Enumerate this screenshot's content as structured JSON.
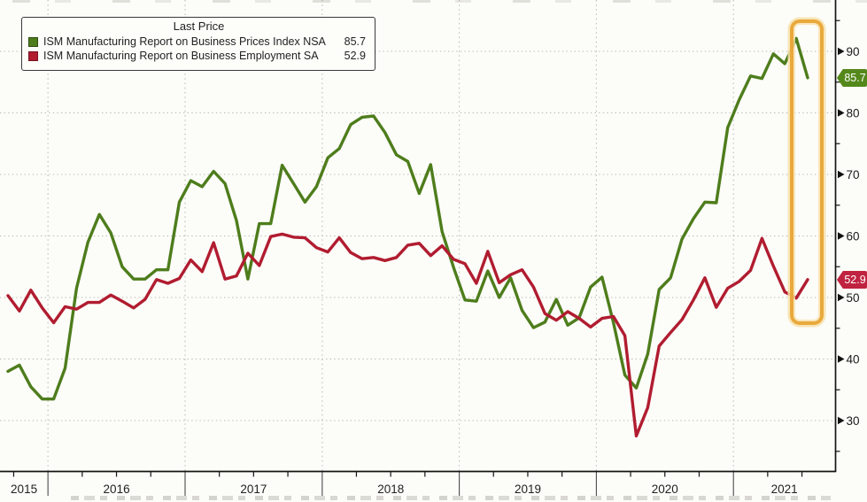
{
  "legend": {
    "title": "Last Price",
    "series": [
      {
        "label": "ISM Manufacturing Report on Business Prices Index NSA",
        "value": "85.7"
      },
      {
        "label": "ISM Manufacturing Report on Business Employment SA",
        "value": "52.9"
      }
    ]
  },
  "tags": [
    {
      "value": "85.7",
      "bg": "#54881b"
    },
    {
      "value": "52.9",
      "bg": "#c02340"
    }
  ],
  "colors": {
    "prices_line": "#4e7d1c",
    "employment_line": "#b11c30",
    "prices_swatch_border": "#2f4d10",
    "employment_swatch_border": "#771022",
    "grid": "#b9b9b4",
    "axis": "#141414",
    "highlight": "#e9a93c"
  },
  "chart_data": {
    "type": "line",
    "title": "",
    "xlabel": "",
    "ylabel": "",
    "frequency": "monthly",
    "x_start": "2015-09",
    "x_end": "2021-07",
    "ylim": [
      21.5,
      98.5
    ],
    "grid": true,
    "legend_position": "top-left",
    "y_axis": {
      "major_ticks": [
        90,
        80,
        70,
        60,
        50,
        40,
        30
      ],
      "minor_ticks": [
        95,
        85,
        75,
        65,
        55,
        45,
        35,
        25
      ]
    },
    "x_axis": {
      "year_labels": [
        "2015",
        "2016",
        "2017",
        "2018",
        "2019",
        "2020",
        "2021"
      ]
    },
    "annotations": [
      {
        "type": "highlight-box",
        "note": "orange rounded box around the last two months (Jun-Jul 2021)"
      }
    ],
    "categories": [
      "2015-09",
      "2015-10",
      "2015-11",
      "2015-12",
      "2016-01",
      "2016-02",
      "2016-03",
      "2016-04",
      "2016-05",
      "2016-06",
      "2016-07",
      "2016-08",
      "2016-09",
      "2016-10",
      "2016-11",
      "2016-12",
      "2017-01",
      "2017-02",
      "2017-03",
      "2017-04",
      "2017-05",
      "2017-06",
      "2017-07",
      "2017-08",
      "2017-09",
      "2017-10",
      "2017-11",
      "2017-12",
      "2018-01",
      "2018-02",
      "2018-03",
      "2018-04",
      "2018-05",
      "2018-06",
      "2018-07",
      "2018-08",
      "2018-09",
      "2018-10",
      "2018-11",
      "2018-12",
      "2019-01",
      "2019-02",
      "2019-03",
      "2019-04",
      "2019-05",
      "2019-06",
      "2019-07",
      "2019-08",
      "2019-09",
      "2019-10",
      "2019-11",
      "2019-12",
      "2020-01",
      "2020-02",
      "2020-03",
      "2020-04",
      "2020-05",
      "2020-06",
      "2020-07",
      "2020-08",
      "2020-09",
      "2020-10",
      "2020-11",
      "2020-12",
      "2021-01",
      "2021-02",
      "2021-03",
      "2021-04",
      "2021-05",
      "2021-06",
      "2021-07"
    ],
    "series": [
      {
        "name": "ISM Manufacturing Report on Business Prices Index NSA",
        "last_value": 85.7,
        "color": "#4e7d1c",
        "values": [
          38.0,
          39.0,
          35.5,
          33.5,
          33.5,
          38.5,
          51.5,
          59.0,
          63.5,
          60.5,
          55.0,
          53.0,
          53.0,
          54.5,
          54.5,
          65.5,
          69.0,
          68.0,
          70.5,
          68.5,
          62.5,
          53.0,
          62.0,
          62.0,
          71.5,
          68.5,
          65.5,
          68.0,
          72.7,
          74.2,
          78.1,
          79.3,
          79.5,
          76.8,
          73.2,
          72.1,
          66.9,
          71.6,
          60.7,
          54.9,
          49.6,
          49.4,
          54.3,
          50.0,
          53.2,
          47.9,
          45.1,
          46.0,
          49.7,
          45.5,
          46.7,
          51.7,
          53.3,
          45.9,
          37.4,
          35.3,
          40.8,
          51.3,
          53.2,
          59.5,
          62.8,
          65.5,
          65.4,
          77.6,
          82.1,
          86.0,
          85.6,
          89.6,
          88.0,
          92.1,
          85.7
        ]
      },
      {
        "name": "ISM Manufacturing Report on Business Employment SA",
        "last_value": 52.9,
        "color": "#b11c30",
        "values": [
          50.3,
          47.8,
          51.2,
          48.3,
          45.9,
          48.5,
          48.1,
          49.2,
          49.2,
          50.4,
          49.4,
          48.3,
          49.7,
          52.9,
          52.3,
          53.1,
          56.1,
          54.2,
          58.9,
          53.0,
          53.5,
          57.2,
          55.2,
          59.9,
          60.3,
          59.8,
          59.7,
          58.1,
          57.4,
          59.7,
          57.3,
          56.3,
          56.5,
          56.0,
          56.5,
          58.5,
          58.8,
          56.8,
          58.4,
          56.2,
          55.5,
          52.3,
          57.5,
          52.4,
          53.7,
          54.5,
          51.7,
          47.4,
          46.3,
          47.7,
          46.6,
          45.2,
          46.6,
          46.9,
          43.8,
          27.5,
          32.1,
          42.1,
          44.3,
          46.4,
          49.6,
          53.2,
          48.4,
          51.5,
          52.6,
          54.4,
          59.6,
          55.1,
          50.9,
          49.9,
          52.9
        ]
      }
    ]
  }
}
